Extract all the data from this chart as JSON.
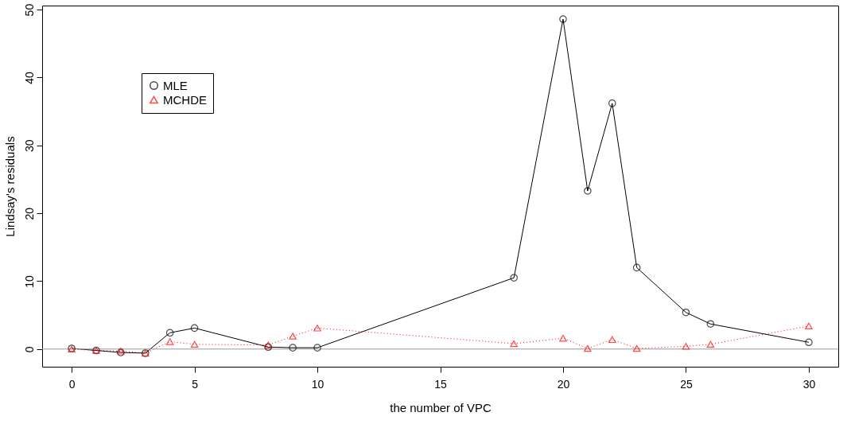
{
  "chart_data": {
    "type": "line",
    "xlabel": "the number of VPC",
    "ylabel": "Lindsay's residuals",
    "x": [
      0,
      1,
      2,
      3,
      4,
      5,
      8,
      9,
      10,
      18,
      20,
      21,
      22,
      23,
      25,
      26,
      30
    ],
    "series": [
      {
        "name": "MLE",
        "color": "#000000",
        "marker": "circle",
        "line_style": "solid",
        "values": [
          0.1,
          -0.2,
          -0.5,
          -0.6,
          2.4,
          3.1,
          0.3,
          0.2,
          0.2,
          10.5,
          48.6,
          23.3,
          36.2,
          12,
          5.4,
          3.7,
          1
        ]
      },
      {
        "name": "MCHDE",
        "color": "#ff0000",
        "marker": "triangle",
        "line_style": "dotted",
        "values": [
          0,
          -0.2,
          -0.3,
          -0.6,
          1.1,
          0.7,
          0.6,
          1.9,
          3.1,
          0.8,
          1.6,
          0.1,
          1.4,
          0.1,
          0.4,
          0.7,
          3.4
        ]
      }
    ],
    "xlim": [
      -1.2,
      31.2
    ],
    "xticks": [
      0,
      5,
      10,
      15,
      20,
      25,
      30
    ],
    "ylim": [
      -2.6,
      50.6
    ],
    "yticks": [
      0,
      10,
      20,
      30,
      40,
      50
    ],
    "ref_lines": [
      {
        "axis": "y",
        "value": 0,
        "color": "#999999"
      }
    ],
    "legend": "top left",
    "grid": false
  }
}
